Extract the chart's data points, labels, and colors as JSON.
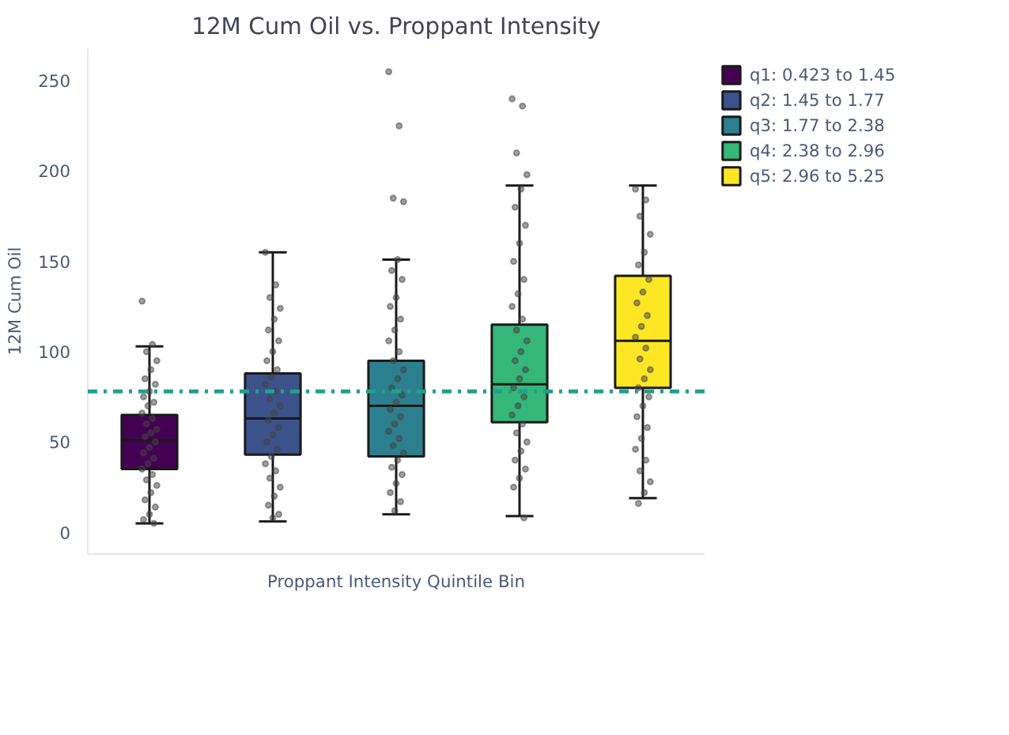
{
  "chart_data": {
    "type": "box",
    "title": "12M Cum Oil vs. Proppant Intensity",
    "xlabel": "Proppant Intensity Quintile Bin",
    "ylabel": "12M Cum Oil",
    "categories": [
      null,
      null,
      null,
      null,
      null
    ],
    "ylim": [
      -12,
      268
    ],
    "yticks": [
      0,
      50,
      100,
      150,
      200,
      250
    ],
    "grid": false,
    "legend": "top right",
    "ref_lines": [
      {
        "axis": "y",
        "value": 78,
        "color": "#1fa08f",
        "line_style": "dashdot"
      }
    ],
    "series": [
      {
        "name": "q1: 0.423 to 1.45",
        "color": "#440154",
        "boxes": [
          {
            "low": 5,
            "q1": 35,
            "median": 51,
            "q3": 65,
            "high": 103,
            "outliers": [
              128,
              104,
              100,
              95,
              90,
              85,
              82,
              78,
              75,
              72,
              70,
              66,
              63,
              60,
              57,
              55,
              53,
              50,
              47,
              44,
              41,
              38,
              35,
              32,
              29,
              26,
              22,
              18,
              14,
              10,
              7,
              5
            ]
          },
          null,
          null,
          null,
          null
        ]
      },
      {
        "name": "q2: 1.45 to 1.77",
        "color": "#3b528b",
        "boxes": [
          null,
          {
            "low": 6,
            "q1": 43,
            "median": 63,
            "q3": 88,
            "high": 155,
            "outliers": [
              155,
              137,
              130,
              124,
              118,
              112,
              106,
              100,
              95,
              90,
              86,
              82,
              78,
              74,
              70,
              66,
              62,
              58,
              54,
              50,
              46,
              42,
              38,
              34,
              30,
              25,
              20,
              15,
              10,
              8
            ]
          },
          null,
          null,
          null
        ]
      },
      {
        "name": "q3: 1.77 to 2.38",
        "color": "#2c7f8e",
        "boxes": [
          null,
          null,
          {
            "low": 10,
            "q1": 42,
            "median": 70,
            "q3": 95,
            "high": 151,
            "outliers": [
              255,
              225,
              185,
              183,
              151,
              145,
              140,
              130,
              125,
              118,
              112,
              106,
              100,
              95,
              90,
              85,
              80,
              76,
              72,
              68,
              64,
              60,
              56,
              52,
              48,
              44,
              40,
              36,
              32,
              27,
              22,
              17,
              12
            ]
          },
          null,
          null
        ]
      },
      {
        "name": "q4: 2.38 to 2.96",
        "color": "#35b779",
        "boxes": [
          null,
          null,
          null,
          {
            "low": 9,
            "q1": 61,
            "median": 82,
            "q3": 115,
            "high": 192,
            "outliers": [
              240,
              236,
              210,
              198,
              190,
              180,
              170,
              160,
              150,
              140,
              132,
              125,
              118,
              112,
              106,
              100,
              95,
              90,
              85,
              80,
              75,
              70,
              65,
              60,
              55,
              50,
              45,
              40,
              35,
              30,
              25,
              8
            ]
          },
          null
        ]
      },
      {
        "name": "q5: 2.96 to 5.25",
        "color": "#fde725",
        "boxes": [
          null,
          null,
          null,
          null,
          {
            "low": 19,
            "q1": 80,
            "median": 106,
            "q3": 142,
            "high": 192,
            "outliers": [
              190,
              184,
              175,
              165,
              155,
              148,
              140,
              133,
              127,
              120,
              114,
              108,
              102,
              96,
              90,
              85,
              80,
              75,
              70,
              64,
              58,
              52,
              46,
              40,
              34,
              28,
              22,
              16
            ]
          }
        ]
      }
    ]
  }
}
